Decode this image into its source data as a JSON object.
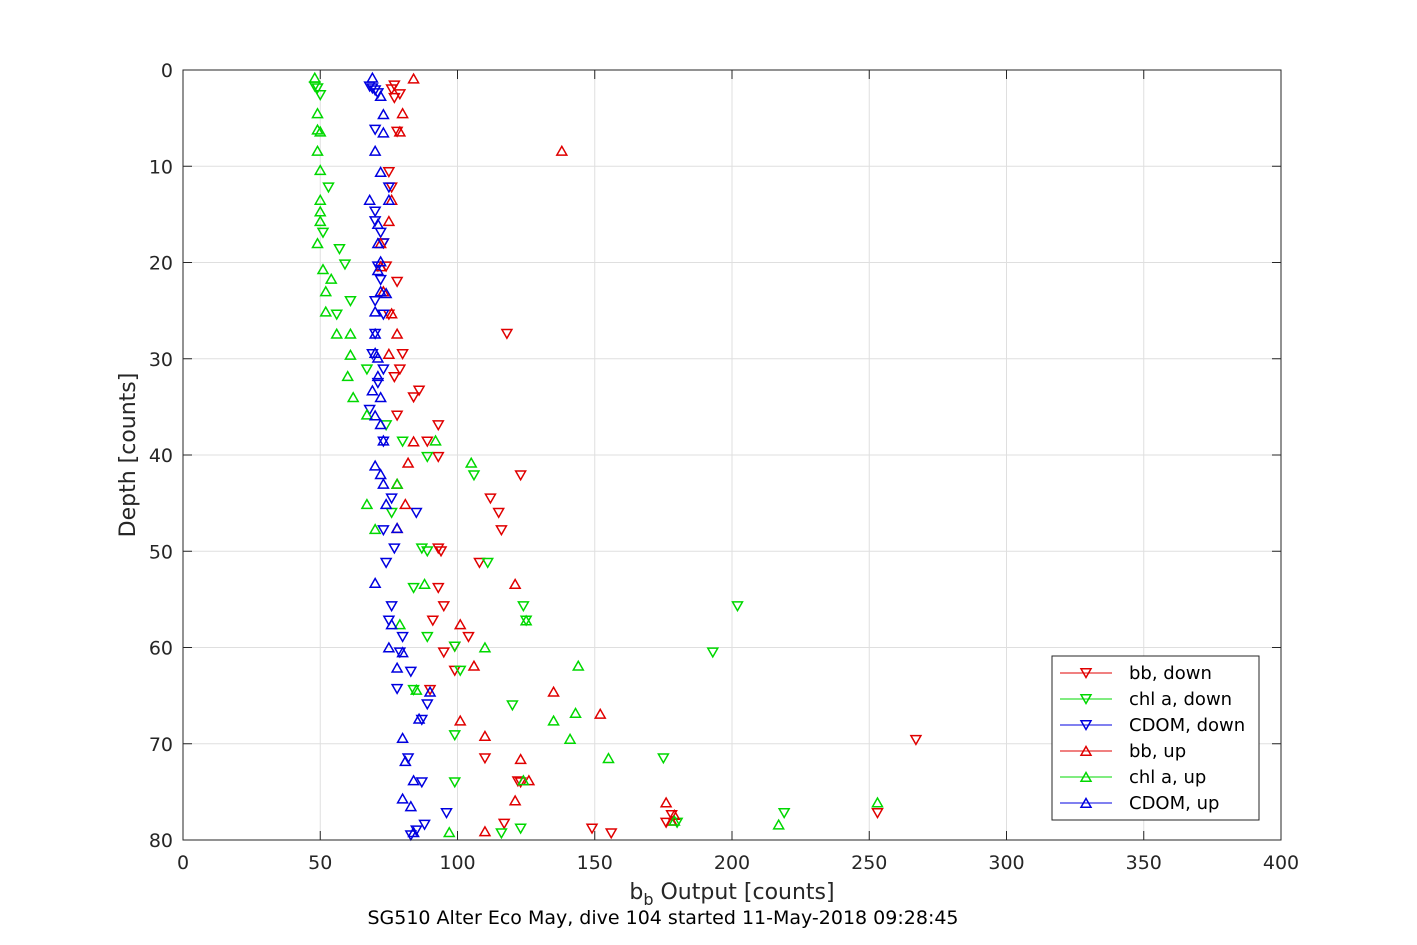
{
  "chart_data": {
    "type": "scatter",
    "xlabel_main": "b",
    "xlabel_sub": "b",
    "xlabel_rest": " Output [counts]",
    "ylabel": "Depth [counts]",
    "caption": "SG510 Alter Eco May, dive 104 started 11-May-2018 09:28:45",
    "xlim": [
      0,
      400
    ],
    "ylim": [
      0,
      80
    ],
    "y_reversed": true,
    "grid": true,
    "legend_position": "bottom-right",
    "x_ticks": [
      "0",
      "50",
      "100",
      "150",
      "200",
      "250",
      "300",
      "350",
      "400"
    ],
    "y_ticks": [
      "0",
      "10",
      "20",
      "30",
      "40",
      "50",
      "60",
      "70",
      "80"
    ],
    "colors": {
      "bb": "#e00000",
      "chl": "#00d800",
      "cdom": "#0000e0"
    },
    "series": [
      {
        "name": "bb, down",
        "color": "#e00000",
        "marker": "down",
        "points": [
          [
            77,
            1.6
          ],
          [
            76,
            2.0
          ],
          [
            79,
            2.5
          ],
          [
            77,
            2.9
          ],
          [
            78,
            6.4
          ],
          [
            75,
            10.6
          ],
          [
            76,
            12.2
          ],
          [
            73,
            18.0
          ],
          [
            74,
            20.4
          ],
          [
            78,
            22.0
          ],
          [
            75,
            25.4
          ],
          [
            118,
            27.4
          ],
          [
            80,
            29.5
          ],
          [
            79,
            31.1
          ],
          [
            77,
            31.9
          ],
          [
            86,
            33.3
          ],
          [
            84,
            34.0
          ],
          [
            78,
            35.9
          ],
          [
            93,
            36.9
          ],
          [
            89,
            38.6
          ],
          [
            93,
            40.2
          ],
          [
            123,
            42.1
          ],
          [
            112,
            44.5
          ],
          [
            115,
            46.0
          ],
          [
            116,
            47.8
          ],
          [
            93,
            49.7
          ],
          [
            94,
            50.0
          ],
          [
            108,
            51.2
          ],
          [
            93,
            53.8
          ],
          [
            95,
            55.7
          ],
          [
            91,
            57.2
          ],
          [
            104,
            58.9
          ],
          [
            99,
            59.9
          ],
          [
            95,
            60.5
          ],
          [
            99,
            62.4
          ],
          [
            90,
            64.4
          ],
          [
            110,
            71.5
          ],
          [
            122,
            73.9
          ],
          [
            123,
            74.0
          ],
          [
            178,
            77.4
          ],
          [
            176,
            78.2
          ],
          [
            117,
            78.3
          ],
          [
            149,
            78.8
          ],
          [
            156,
            79.3
          ],
          [
            267,
            69.6
          ],
          [
            253,
            77.2
          ]
        ]
      },
      {
        "name": "chl a, down",
        "color": "#00d800",
        "marker": "down",
        "points": [
          [
            48,
            1.7
          ],
          [
            49,
            1.9
          ],
          [
            50,
            2.6
          ],
          [
            53,
            12.2
          ],
          [
            51,
            16.9
          ],
          [
            57,
            18.6
          ],
          [
            59,
            20.2
          ],
          [
            61,
            24.0
          ],
          [
            56,
            25.4
          ],
          [
            67,
            31.1
          ],
          [
            74,
            36.9
          ],
          [
            80,
            38.6
          ],
          [
            89,
            40.2
          ],
          [
            106,
            42.1
          ],
          [
            76,
            46.0
          ],
          [
            87,
            49.7
          ],
          [
            89,
            50.0
          ],
          [
            111,
            51.2
          ],
          [
            84,
            53.8
          ],
          [
            124,
            55.7
          ],
          [
            202,
            55.7
          ],
          [
            125,
            57.2
          ],
          [
            89,
            58.9
          ],
          [
            99,
            59.9
          ],
          [
            193,
            60.5
          ],
          [
            101,
            62.4
          ],
          [
            84,
            64.4
          ],
          [
            120,
            66.0
          ],
          [
            99,
            69.1
          ],
          [
            175,
            71.5
          ],
          [
            99,
            74.0
          ],
          [
            219,
            77.2
          ],
          [
            180,
            78.2
          ],
          [
            123,
            78.8
          ],
          [
            116,
            79.3
          ]
        ]
      },
      {
        "name": "CDOM, down",
        "color": "#0000e0",
        "marker": "down",
        "points": [
          [
            68,
            1.7
          ],
          [
            69,
            1.9
          ],
          [
            70,
            2.1
          ],
          [
            71,
            2.4
          ],
          [
            70,
            6.2
          ],
          [
            75,
            12.2
          ],
          [
            70,
            14.7
          ],
          [
            70,
            15.7
          ],
          [
            72,
            16.9
          ],
          [
            73,
            18.0
          ],
          [
            71,
            20.4
          ],
          [
            72,
            21.8
          ],
          [
            70,
            24.0
          ],
          [
            73,
            25.4
          ],
          [
            70,
            27.4
          ],
          [
            69,
            29.5
          ],
          [
            73,
            31.1
          ],
          [
            71,
            32.5
          ],
          [
            68,
            35.3
          ],
          [
            73,
            38.6
          ],
          [
            76,
            44.5
          ],
          [
            85,
            46.0
          ],
          [
            73,
            47.8
          ],
          [
            77,
            49.7
          ],
          [
            74,
            51.2
          ],
          [
            76,
            55.7
          ],
          [
            75,
            57.2
          ],
          [
            80,
            58.9
          ],
          [
            79,
            60.5
          ],
          [
            83,
            62.5
          ],
          [
            78,
            64.3
          ],
          [
            89,
            65.9
          ],
          [
            87,
            67.5
          ],
          [
            82,
            71.5
          ],
          [
            87,
            74.0
          ],
          [
            96,
            77.2
          ],
          [
            88,
            78.4
          ],
          [
            85,
            79.0
          ],
          [
            83,
            79.5
          ]
        ]
      },
      {
        "name": "bb, up",
        "color": "#e00000",
        "marker": "up",
        "points": [
          [
            84,
            0.9
          ],
          [
            80,
            4.5
          ],
          [
            79,
            6.4
          ],
          [
            138,
            8.4
          ],
          [
            76,
            13.5
          ],
          [
            75,
            15.7
          ],
          [
            72,
            18.0
          ],
          [
            72,
            20.4
          ],
          [
            73,
            23.0
          ],
          [
            76,
            25.3
          ],
          [
            78,
            27.4
          ],
          [
            75,
            29.5
          ],
          [
            84,
            38.6
          ],
          [
            82,
            40.8
          ],
          [
            78,
            43.0
          ],
          [
            81,
            45.1
          ],
          [
            78,
            47.6
          ],
          [
            121,
            53.4
          ],
          [
            101,
            57.6
          ],
          [
            106,
            61.9
          ],
          [
            135,
            64.6
          ],
          [
            152,
            66.9
          ],
          [
            101,
            67.6
          ],
          [
            110,
            69.2
          ],
          [
            123,
            71.6
          ],
          [
            126,
            73.8
          ],
          [
            121,
            75.9
          ],
          [
            176,
            76.1
          ],
          [
            179,
            77.4
          ],
          [
            178,
            78.0
          ],
          [
            110,
            79.1
          ]
        ]
      },
      {
        "name": "chl a, up",
        "color": "#00d800",
        "marker": "up",
        "points": [
          [
            48,
            0.8
          ],
          [
            49,
            4.5
          ],
          [
            49,
            6.2
          ],
          [
            50,
            6.4
          ],
          [
            49,
            8.4
          ],
          [
            50,
            10.4
          ],
          [
            50,
            13.5
          ],
          [
            50,
            14.7
          ],
          [
            50,
            15.7
          ],
          [
            49,
            18.0
          ],
          [
            51,
            20.7
          ],
          [
            54,
            21.7
          ],
          [
            52,
            23.0
          ],
          [
            52,
            25.1
          ],
          [
            56,
            27.4
          ],
          [
            61,
            27.4
          ],
          [
            61,
            29.6
          ],
          [
            60,
            31.8
          ],
          [
            62,
            34.0
          ],
          [
            67,
            35.8
          ],
          [
            92,
            38.5
          ],
          [
            105,
            40.8
          ],
          [
            78,
            43.0
          ],
          [
            67,
            45.1
          ],
          [
            70,
            47.7
          ],
          [
            88,
            53.4
          ],
          [
            125,
            57.2
          ],
          [
            79,
            57.6
          ],
          [
            110,
            60.0
          ],
          [
            144,
            61.9
          ],
          [
            85,
            64.4
          ],
          [
            143,
            66.8
          ],
          [
            135,
            67.6
          ],
          [
            141,
            69.5
          ],
          [
            155,
            71.5
          ],
          [
            124,
            73.8
          ],
          [
            253,
            76.1
          ],
          [
            217,
            78.4
          ],
          [
            179,
            78.0
          ],
          [
            97,
            79.2
          ]
        ]
      },
      {
        "name": "CDOM, up",
        "color": "#0000e0",
        "marker": "up",
        "points": [
          [
            69,
            0.8
          ],
          [
            72,
            2.7
          ],
          [
            73,
            4.6
          ],
          [
            73,
            6.5
          ],
          [
            70,
            8.4
          ],
          [
            72,
            10.6
          ],
          [
            68,
            13.5
          ],
          [
            75,
            13.5
          ],
          [
            71,
            16.0
          ],
          [
            71,
            18.0
          ],
          [
            72,
            19.9
          ],
          [
            71,
            20.8
          ],
          [
            72,
            23.0
          ],
          [
            74,
            23.2
          ],
          [
            70,
            25.1
          ],
          [
            70,
            27.4
          ],
          [
            70,
            29.4
          ],
          [
            71,
            29.9
          ],
          [
            71,
            31.8
          ],
          [
            69,
            33.3
          ],
          [
            72,
            34.0
          ],
          [
            70,
            35.9
          ],
          [
            72,
            36.8
          ],
          [
            73,
            38.5
          ],
          [
            70,
            41.1
          ],
          [
            72,
            42.0
          ],
          [
            73,
            43.0
          ],
          [
            74,
            45.1
          ],
          [
            78,
            47.6
          ],
          [
            70,
            53.3
          ],
          [
            76,
            57.6
          ],
          [
            75,
            60.0
          ],
          [
            80,
            60.5
          ],
          [
            78,
            62.1
          ],
          [
            90,
            64.6
          ],
          [
            86,
            67.4
          ],
          [
            80,
            69.4
          ],
          [
            81,
            71.8
          ],
          [
            84,
            73.8
          ],
          [
            80,
            75.7
          ],
          [
            83,
            76.5
          ],
          [
            84,
            79.2
          ]
        ]
      }
    ]
  }
}
